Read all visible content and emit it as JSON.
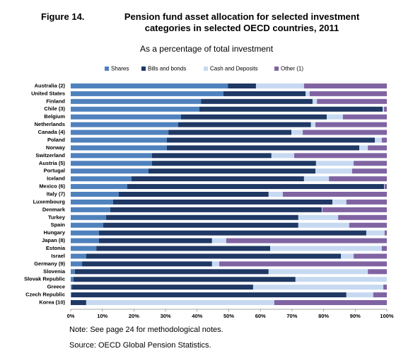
{
  "chart_data": {
    "type": "stacked_barh",
    "label": "Figure 14.",
    "title": "Pension fund asset allocation for selected investment categories in selected OECD countries, 2011",
    "subtitle": "As a percentage of total investment",
    "categories": [
      "Australia (2)",
      "United States",
      "Finland",
      "Chile (3)",
      "Belgium",
      "Netherlands",
      "Canada (4)",
      "Poland",
      "Norway",
      "Switzerland",
      "Austria (5)",
      "Portugal",
      "Iceland",
      "Mexico (6)",
      "Italy (7)",
      "Luxembourg",
      "Denmark",
      "Turkey",
      "Spain",
      "Hungary",
      "Japan (8)",
      "Estonia",
      "Israel",
      "Germany (9)",
      "Slovenia",
      "Slovak Republic",
      "Greece",
      "Czech Republic",
      "Korea (10)"
    ],
    "series": [
      {
        "name": "Shares",
        "color": "#4f81bd",
        "values": [
          49.7,
          48.3,
          41.2,
          40.7,
          34.9,
          34.0,
          30.9,
          30.4,
          30.4,
          25.7,
          25.7,
          24.6,
          19.2,
          17.9,
          15.2,
          13.4,
          12.5,
          11.2,
          10.3,
          8.9,
          8.9,
          8.1,
          4.9,
          3.6,
          1.3,
          0.9,
          0.4,
          0.2,
          0
        ]
      },
      {
        "name": "Bills and bonds",
        "color": "#1f3864",
        "values": [
          8.9,
          26.0,
          35.3,
          58.0,
          46.1,
          42.0,
          38.9,
          65.8,
          60.9,
          37.8,
          51.9,
          52.8,
          54.6,
          81.2,
          47.4,
          69.4,
          66.9,
          60.8,
          61.7,
          84.6,
          35.8,
          55.0,
          80.6,
          41.1,
          61.3,
          70.2,
          57.3,
          87.0,
          4.9
        ]
      },
      {
        "name": "Cash and Deposits",
        "color": "#c6d9f1",
        "values": [
          15.2,
          1.3,
          1.4,
          0.4,
          5.1,
          1.4,
          3.6,
          2.2,
          2.7,
          7.2,
          11.9,
          11.6,
          7.9,
          0.2,
          4.5,
          4.4,
          0.2,
          12.6,
          16.1,
          5.8,
          4.5,
          35.3,
          4.0,
          2.3,
          31.4,
          28.9,
          41.2,
          8.5,
          59.5
        ]
      },
      {
        "name": "Other (1)",
        "color": "#8064a2",
        "values": [
          26.2,
          24.4,
          22.1,
          0.9,
          13.9,
          22.6,
          26.6,
          1.6,
          6.0,
          29.3,
          10.5,
          11.0,
          18.3,
          0.7,
          32.9,
          12.8,
          20.4,
          15.4,
          11.9,
          0.7,
          50.8,
          1.6,
          10.5,
          53.0,
          6.0,
          0,
          1.1,
          4.3,
          35.6
        ]
      }
    ],
    "xlim": [
      0,
      100
    ],
    "xticks": [
      {
        "value": 0,
        "label": "0%"
      },
      {
        "value": 10,
        "label": "10%"
      },
      {
        "value": 20,
        "label": "20%"
      },
      {
        "value": 30,
        "label": "30%"
      },
      {
        "value": 40,
        "label": "40%"
      },
      {
        "value": 50,
        "label": "50%"
      },
      {
        "value": 60,
        "label": "60%"
      },
      {
        "value": 70,
        "label": "70%"
      },
      {
        "value": 80,
        "label": "80%"
      },
      {
        "value": 90,
        "label": "90%"
      },
      {
        "value": 100,
        "label": "100%"
      }
    ],
    "notes": [
      "Note: See page 24 for methodological notes.",
      "Source: OECD Global Pension Statistics."
    ]
  }
}
